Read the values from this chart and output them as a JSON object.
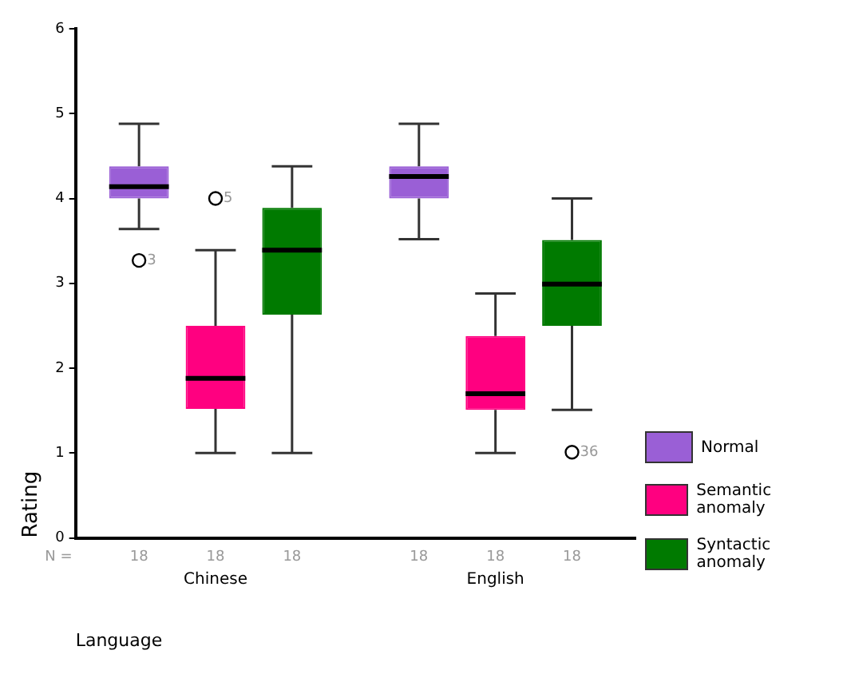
{
  "chart_data": {
    "type": "box",
    "xlabel": "Language",
    "ylabel": "Rating",
    "categories": [
      "Chinese",
      "English"
    ],
    "ylim": [
      0,
      6
    ],
    "yticks": [
      0,
      1,
      2,
      3,
      4,
      5,
      6
    ],
    "grid": false,
    "legend": "right",
    "series": [
      {
        "name": "Normal",
        "color": "#9a5fd6",
        "boxes": [
          {
            "low": 3.64,
            "q1": 4.0,
            "median": 4.14,
            "q3": 4.38,
            "high": 4.88,
            "outliers": [
              3.27
            ]
          },
          {
            "low": 3.52,
            "q1": 4.0,
            "median": 4.26,
            "q3": 4.38,
            "high": 4.88
          }
        ]
      },
      {
        "name": "Semantic anomaly",
        "color": "#ff0080",
        "boxes": [
          {
            "low": 1.0,
            "q1": 1.52,
            "median": 1.88,
            "q3": 2.5,
            "high": 3.39,
            "outliers": [
              4.0
            ]
          },
          {
            "low": 1.0,
            "q1": 1.51,
            "median": 1.7,
            "q3": 2.38,
            "high": 2.88
          }
        ]
      },
      {
        "name": "Syntactic anomaly",
        "color": "#007a00",
        "boxes": [
          {
            "low": 1.0,
            "q1": 2.63,
            "median": 3.39,
            "q3": 3.89,
            "high": 4.38
          },
          {
            "low": 1.51,
            "q1": 2.5,
            "median": 2.99,
            "q3": 3.51,
            "high": 4.0,
            "outliers": [
              1.01
            ]
          }
        ]
      }
    ],
    "annotations": [
      "N =",
      "18",
      "18",
      "18",
      "18",
      "18",
      "18",
      "3",
      "5",
      "36"
    ]
  }
}
